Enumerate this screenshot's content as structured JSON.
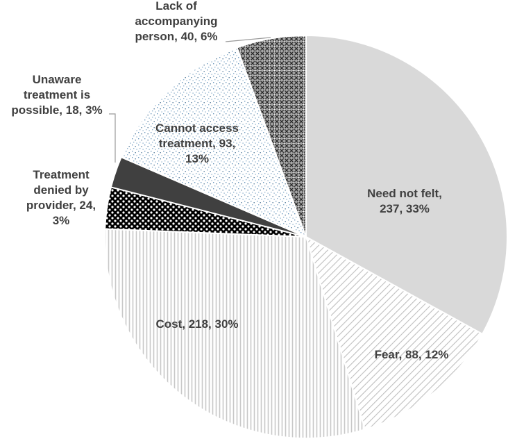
{
  "chart_data": {
    "type": "pie",
    "title": "",
    "start_angle_deg": 0,
    "direction": "clockwise",
    "slices": [
      {
        "label": "Need not felt",
        "value": 237,
        "percent": "33%",
        "pattern": "solid-light"
      },
      {
        "label": "Fear",
        "value": 88,
        "percent": "12%",
        "pattern": "diagonal-hatch"
      },
      {
        "label": "Cost",
        "value": 218,
        "percent": "30%",
        "pattern": "vertical-lines"
      },
      {
        "label": "Treatment denied by provider",
        "value": 24,
        "percent": "3%",
        "pattern": "black-white-dots"
      },
      {
        "label": "Unaware treatment is possible",
        "value": 18,
        "percent": "3%",
        "pattern": "solid-dark"
      },
      {
        "label": "Cannot access treatment",
        "value": 93,
        "percent": "13%",
        "pattern": "fine-dots"
      },
      {
        "label": "Lack of accompanying person",
        "value": 40,
        "percent": "6%",
        "pattern": "crosshatch"
      }
    ],
    "labels": [
      {
        "lines": [
          "Need not felt,",
          "237, 33%"
        ]
      },
      {
        "lines": [
          "Fear, 88, 12%"
        ]
      },
      {
        "lines": [
          "Cost, 218, 30%"
        ]
      },
      {
        "lines": [
          "Treatment",
          "denied by",
          "provider, 24,",
          "3%"
        ]
      },
      {
        "lines": [
          "Unaware",
          "treatment is",
          "possible, 18, 3%"
        ]
      },
      {
        "lines": [
          "Cannot access",
          "treatment, 93,",
          "13%"
        ]
      },
      {
        "lines": [
          "Lack of",
          "accompanying",
          "person, 40, 6%"
        ]
      }
    ],
    "colors": {
      "solid_light": "#d9d9d9",
      "solid_dark": "#404040",
      "hatch_line": "#bfbfbf",
      "dots_black": "#000000",
      "fine_dots": "#6f9bbf",
      "crosshatch_line": "#262626",
      "crosshatch_bg": "#a6a6a6",
      "edge": "#ffffff",
      "label_text": "#404040",
      "leader_line": "#9a9a9a"
    }
  }
}
